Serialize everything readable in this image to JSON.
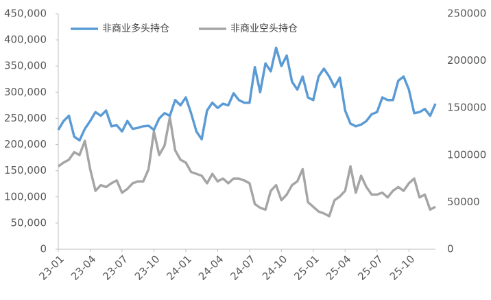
{
  "chart_data": {
    "type": "line",
    "categories": [
      "23-01",
      null,
      null,
      null,
      null,
      null,
      "23-04",
      null,
      null,
      null,
      null,
      null,
      "23-07",
      null,
      null,
      null,
      null,
      null,
      "23-10",
      null,
      null,
      null,
      null,
      null,
      "24-01",
      null,
      null,
      null,
      null,
      null,
      "24-04",
      null,
      null,
      null,
      null,
      null,
      "24-07",
      null,
      null,
      null,
      null,
      null,
      "24-10",
      null,
      null,
      null,
      null,
      null,
      "25-01",
      null,
      null,
      null,
      null,
      null,
      "25-04",
      null,
      null,
      null,
      null,
      null,
      "25-07",
      null,
      null,
      null,
      null,
      null,
      "25-10",
      null,
      null,
      null,
      null,
      null
    ],
    "series": [
      {
        "name": "非商业多头持仓",
        "color": "#5b9bd5",
        "values": [
          228000,
          245000,
          255000,
          215000,
          208000,
          230000,
          245000,
          262000,
          255000,
          265000,
          235000,
          237000,
          225000,
          245000,
          230000,
          232000,
          235000,
          236000,
          228000,
          250000,
          260000,
          255000,
          285000,
          275000,
          290000,
          260000,
          225000,
          210000,
          265000,
          280000,
          270000,
          278000,
          275000,
          298000,
          285000,
          280000,
          280000,
          348000,
          300000,
          355000,
          340000,
          385000,
          350000,
          370000,
          320000,
          305000,
          330000,
          290000,
          285000,
          330000,
          345000,
          330000,
          310000,
          328000,
          265000,
          240000,
          235000,
          238000,
          245000,
          258000,
          262000,
          290000,
          285000,
          285000,
          322000,
          330000,
          305000,
          260000,
          262000,
          268000,
          255000,
          278000
        ]
      },
      {
        "name": "非商业空头持仓",
        "color": "#a5a5a5",
        "axis": "y2",
        "values": [
          88000,
          92000,
          95000,
          103000,
          100000,
          115000,
          85000,
          62000,
          68000,
          66000,
          70000,
          73000,
          60000,
          64000,
          70000,
          72000,
          72000,
          85000,
          125000,
          100000,
          110000,
          140000,
          105000,
          95000,
          92000,
          82000,
          80000,
          78000,
          70000,
          80000,
          72000,
          75000,
          70000,
          75000,
          75000,
          73000,
          70000,
          48000,
          44000,
          42000,
          62000,
          68000,
          52000,
          58000,
          68000,
          72000,
          85000,
          50000,
          45000,
          40000,
          38000,
          35000,
          52000,
          56000,
          62000,
          88000,
          60000,
          78000,
          66000,
          58000,
          58000,
          60000,
          55000,
          62000,
          66000,
          62000,
          70000,
          75000,
          55000,
          58000,
          42000,
          45000
        ]
      }
    ],
    "ylim": [
      0,
      450000
    ],
    "yticks": [
      0,
      {
        "value": 50000,
        "label": "50,000"
      },
      {
        "value": 100000,
        "label": "100,000"
      },
      {
        "value": 150000,
        "label": "150,000"
      },
      {
        "value": 200000,
        "label": "200,000"
      },
      {
        "value": 250000,
        "label": "250,000"
      },
      {
        "value": 300000,
        "label": "300,000"
      },
      {
        "value": 350000,
        "label": "350,000"
      },
      {
        "value": 400000,
        "label": "400,000"
      },
      {
        "value": 450000,
        "label": "450,000"
      }
    ],
    "y2lim": [
      0,
      250000
    ],
    "y2ticks": [
      0,
      50000,
      100000,
      150000,
      200000,
      250000
    ],
    "grid": false
  }
}
